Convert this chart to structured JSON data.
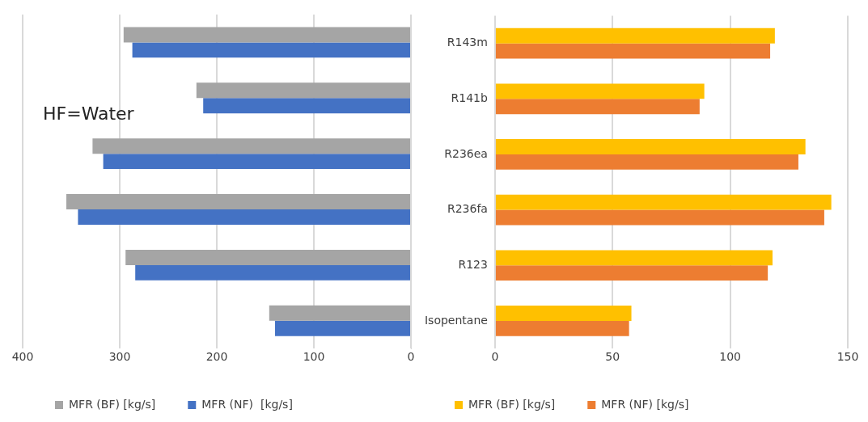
{
  "chart_data": [
    {
      "type": "bar",
      "orientation": "horizontal",
      "categories": [
        null,
        null,
        null,
        null,
        null,
        null
      ],
      "series": [
        {
          "name": "MFR (BF) [kg/s]",
          "color": "#a5a5a5",
          "values": [
            296,
            221,
            328,
            355,
            294,
            146
          ]
        },
        {
          "name": "MFR (NF)  [kg/s]",
          "color": "#4472c4",
          "values": [
            287,
            214,
            317,
            343,
            284,
            140
          ]
        }
      ],
      "xlim": [
        400,
        0
      ],
      "xticks": [
        400,
        300,
        200,
        100,
        0
      ],
      "grid": "x",
      "legend": "bottom",
      "tick_labels": "x",
      "annotations": [
        "HF=Water"
      ]
    },
    {
      "type": "bar",
      "orientation": "horizontal",
      "categories": [
        "R143m",
        "R141b",
        "R236ea",
        "R236fa",
        "R123",
        "Isopentane"
      ],
      "series": [
        {
          "name": "MFR (BF) [kg/s]",
          "color": "#ffc000",
          "values": [
            119,
            89,
            132,
            143,
            118,
            58
          ]
        },
        {
          "name": "MFR (NF) [kg/s]",
          "color": "#ed7d31",
          "values": [
            117,
            87,
            129,
            140,
            116,
            57
          ]
        }
      ],
      "xlim": [
        0,
        150
      ],
      "xticks": [
        0,
        50,
        100,
        150
      ],
      "grid": "x",
      "legend": "bottom"
    }
  ]
}
